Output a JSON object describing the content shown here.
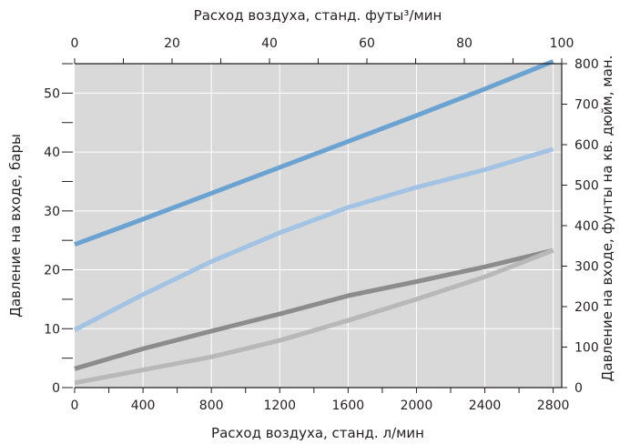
{
  "chart_data": {
    "type": "line",
    "title": "",
    "xlabel_bottom": "Расход воздуха, станд. л/мин",
    "xlabel_top": "Расход воздуха, станд. футы³/мин",
    "ylabel_left": "Давление на входе, бары",
    "ylabel_right": "Давление на входе, фунты на кв. дюйм, ман.",
    "xlim_bottom": [
      0,
      2850
    ],
    "ylim_left": [
      0,
      55
    ],
    "xlim_top": [
      0,
      100
    ],
    "ylim_right": [
      0,
      800
    ],
    "x_ticks_bottom": [
      0,
      400,
      800,
      1200,
      1600,
      2000,
      2400,
      2800
    ],
    "y_ticks_left": [
      0,
      10,
      20,
      30,
      40,
      50
    ],
    "x_ticks_top": [
      0,
      20,
      40,
      60,
      80,
      100
    ],
    "y_ticks_right": [
      0,
      100,
      200,
      300,
      400,
      500,
      600,
      700,
      800
    ],
    "grid": true,
    "background_color": "#d9d9d9",
    "grid_color": "#ffffff",
    "series": [
      {
        "color": "#6aa2d1",
        "x": [
          0,
          400,
          800,
          1200,
          1600,
          2000,
          2400,
          2800
        ],
        "y": [
          24.3,
          28.6,
          33.0,
          37.4,
          41.8,
          46.2,
          50.7,
          55.4
        ]
      },
      {
        "color": "#a2c3e3",
        "x": [
          0,
          400,
          800,
          1200,
          1600,
          2000,
          2400,
          2800
        ],
        "y": [
          9.8,
          15.8,
          21.4,
          26.3,
          30.6,
          34.0,
          37.0,
          40.5
        ]
      },
      {
        "color": "#8c8c8c",
        "x": [
          0,
          400,
          800,
          1200,
          1600,
          2000,
          2400,
          2800
        ],
        "y": [
          3.2,
          6.6,
          9.6,
          12.5,
          15.6,
          18.0,
          20.5,
          23.3
        ]
      },
      {
        "color": "#b8b8b8",
        "x": [
          0,
          400,
          800,
          1200,
          1600,
          2000,
          2400,
          2800
        ],
        "y": [
          0.8,
          3.0,
          5.2,
          8.0,
          11.4,
          15.0,
          18.8,
          23.3
        ]
      }
    ]
  }
}
